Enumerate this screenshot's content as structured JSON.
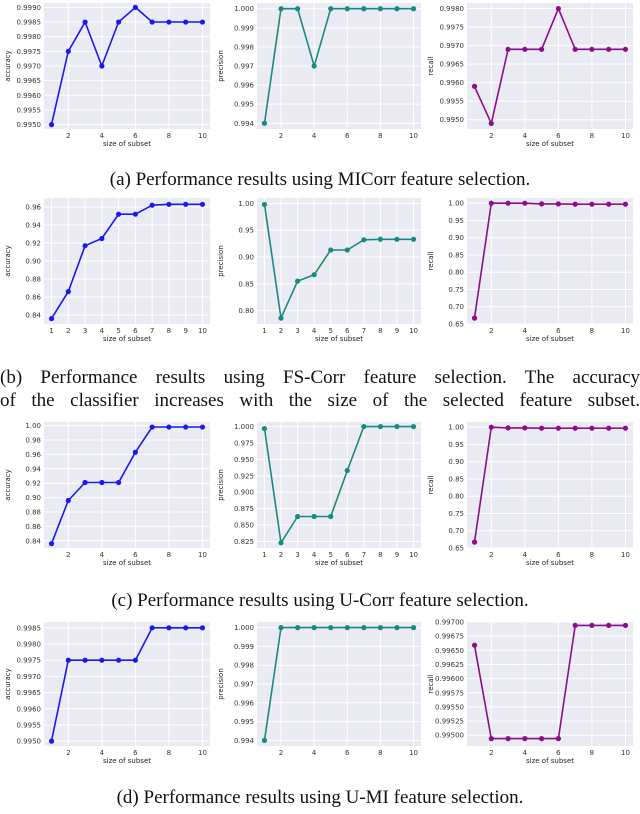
{
  "captions": {
    "a": "(a) Performance results using MICorr feature selection.",
    "b1": "(b) Performance results using FS-Corr feature selection. The accuracy",
    "b2": "of the classifier increases with the size of the selected feature subset.",
    "c": "(c) Performance results using U-Corr feature selection.",
    "d": "(d) Performance results using U-MI feature selection."
  },
  "colors": {
    "accuracy": "#1a1aee",
    "precision": "#1a8a80",
    "recall": "#8a0f8a",
    "plot_bg": "#eaeaf2",
    "grid": "#ffffff"
  },
  "chart_data": [
    {
      "type": "line",
      "group": "a",
      "color_key": "accuracy",
      "x": [
        1,
        2,
        3,
        4,
        5,
        6,
        7,
        8,
        9,
        10
      ],
      "y": [
        0.995,
        0.9975,
        0.9985,
        0.997,
        0.9985,
        0.999,
        0.9985,
        0.9985,
        0.9985,
        0.9985
      ],
      "ylabel": "accuracy",
      "xlabel": "size of subset",
      "ylim": [
        0.99485,
        0.99915
      ],
      "xticks": [
        2,
        4,
        6,
        8,
        10
      ],
      "yticks": [
        0.995,
        0.9955,
        0.996,
        0.9965,
        0.997,
        0.9975,
        0.998,
        0.9985,
        0.999
      ],
      "ytick_labels": [
        "0.9950",
        "0.9955",
        "0.9960",
        "0.9965",
        "0.9970",
        "0.9975",
        "0.9980",
        "0.9985",
        "0.9990"
      ],
      "grid": true
    },
    {
      "type": "line",
      "group": "a",
      "color_key": "precision",
      "x": [
        1,
        2,
        3,
        4,
        5,
        6,
        7,
        8,
        9,
        10
      ],
      "y": [
        0.994,
        1.0,
        1.0,
        0.997,
        1.0,
        1.0,
        1.0,
        1.0,
        1.0,
        1.0
      ],
      "ylabel": "precision",
      "xlabel": "",
      "ylim": [
        0.9937,
        1.0003
      ],
      "xticks": [
        2,
        4,
        6,
        8,
        10
      ],
      "yticks": [
        0.994,
        0.995,
        0.996,
        0.997,
        0.998,
        0.999,
        1.0
      ],
      "ytick_labels": [
        "0.994",
        "0.995",
        "0.996",
        "0.997",
        "0.998",
        "0.999",
        "1.000"
      ],
      "grid": true
    },
    {
      "type": "line",
      "group": "a",
      "color_key": "recall",
      "x": [
        1,
        2,
        3,
        4,
        5,
        6,
        7,
        8,
        9,
        10
      ],
      "y": [
        0.9959,
        0.9949,
        0.9969,
        0.9969,
        0.9969,
        0.998,
        0.9969,
        0.9969,
        0.9969,
        0.9969
      ],
      "ylabel": "recall",
      "xlabel": "size of subset",
      "ylim": [
        0.99475,
        0.99815
      ],
      "xticks": [
        2,
        4,
        6,
        8,
        10
      ],
      "yticks": [
        0.995,
        0.9955,
        0.996,
        0.9965,
        0.997,
        0.9975,
        0.998
      ],
      "ytick_labels": [
        "0.9950",
        "0.9955",
        "0.9960",
        "0.9965",
        "0.9970",
        "0.9975",
        "0.9980"
      ],
      "grid": true
    },
    {
      "type": "line",
      "group": "b",
      "color_key": "accuracy",
      "x": [
        1,
        2,
        3,
        4,
        5,
        6,
        7,
        8,
        9,
        10
      ],
      "y": [
        0.836,
        0.866,
        0.917,
        0.925,
        0.952,
        0.952,
        0.962,
        0.963,
        0.963,
        0.963
      ],
      "ylabel": "accuracy",
      "xlabel": "size of subset",
      "ylim": [
        0.83,
        0.97
      ],
      "xticks": [
        1,
        2,
        3,
        4,
        5,
        6,
        7,
        8,
        9,
        10
      ],
      "yticks": [
        0.84,
        0.86,
        0.88,
        0.9,
        0.92,
        0.94,
        0.96
      ],
      "ytick_labels": [
        "0.84",
        "0.86",
        "0.88",
        "0.90",
        "0.92",
        "0.94",
        "0.96"
      ],
      "grid": true
    },
    {
      "type": "line",
      "group": "b",
      "color_key": "precision",
      "x": [
        1,
        2,
        3,
        4,
        5,
        6,
        7,
        8,
        9,
        10
      ],
      "y": [
        0.998,
        0.786,
        0.855,
        0.867,
        0.913,
        0.913,
        0.932,
        0.933,
        0.933,
        0.933
      ],
      "ylabel": "precision",
      "xlabel": "size of subset",
      "ylim": [
        0.775,
        1.01
      ],
      "xticks": [
        1,
        2,
        3,
        4,
        5,
        6,
        7,
        8,
        9,
        10
      ],
      "yticks": [
        0.8,
        0.85,
        0.9,
        0.95,
        1.0
      ],
      "ytick_labels": [
        "0.80",
        "0.85",
        "0.90",
        "0.95",
        "1.00"
      ],
      "grid": true
    },
    {
      "type": "line",
      "group": "b",
      "color_key": "recall",
      "x": [
        1,
        2,
        3,
        4,
        5,
        6,
        7,
        8,
        9,
        10
      ],
      "y": [
        0.667,
        1.0,
        1.0,
        1.0,
        0.998,
        0.998,
        0.997,
        0.997,
        0.997,
        0.997
      ],
      "ylabel": "recall",
      "xlabel": "size of subset",
      "ylim": [
        0.65,
        1.015
      ],
      "xticks": [
        2,
        4,
        6,
        8,
        10
      ],
      "yticks": [
        0.65,
        0.7,
        0.75,
        0.8,
        0.85,
        0.9,
        0.95,
        1.0
      ],
      "ytick_labels": [
        "0.65",
        "0.70",
        "0.75",
        "0.80",
        "0.85",
        "0.90",
        "0.95",
        "1.00"
      ],
      "grid": true
    },
    {
      "type": "line",
      "group": "c",
      "color_key": "accuracy",
      "x": [
        1,
        2,
        3,
        4,
        5,
        6,
        7,
        8,
        9,
        10
      ],
      "y": [
        0.836,
        0.896,
        0.921,
        0.921,
        0.921,
        0.963,
        0.998,
        0.998,
        0.998,
        0.998
      ],
      "ylabel": "accuracy",
      "xlabel": "size of subset",
      "ylim": [
        0.83,
        1.005
      ],
      "xticks": [
        2,
        4,
        6,
        8,
        10
      ],
      "yticks": [
        0.84,
        0.86,
        0.88,
        0.9,
        0.92,
        0.94,
        0.96,
        0.98,
        1.0
      ],
      "ytick_labels": [
        "0.84",
        "0.86",
        "0.88",
        "0.90",
        "0.92",
        "0.94",
        "0.96",
        "0.98",
        "1.00"
      ],
      "grid": true
    },
    {
      "type": "line",
      "group": "c",
      "color_key": "precision",
      "x": [
        1,
        2,
        3,
        4,
        5,
        6,
        7,
        8,
        9,
        10
      ],
      "y": [
        0.997,
        0.823,
        0.863,
        0.863,
        0.863,
        0.933,
        1.0,
        1.0,
        1.0,
        1.0
      ],
      "ylabel": "precision",
      "xlabel": "size of subset",
      "ylim": [
        0.815,
        1.007
      ],
      "xticks": [
        1,
        2,
        3,
        4,
        5,
        6,
        7,
        8,
        9,
        10
      ],
      "yticks": [
        0.825,
        0.85,
        0.875,
        0.9,
        0.925,
        0.95,
        0.975,
        1.0
      ],
      "ytick_labels": [
        "0.825",
        "0.850",
        "0.875",
        "0.900",
        "0.925",
        "0.950",
        "0.975",
        "1.000"
      ],
      "grid": true
    },
    {
      "type": "line",
      "group": "c",
      "color_key": "recall",
      "x": [
        1,
        2,
        3,
        4,
        5,
        6,
        7,
        8,
        9,
        10
      ],
      "y": [
        0.667,
        1.0,
        0.998,
        0.998,
        0.997,
        0.997,
        0.997,
        0.997,
        0.997,
        0.997
      ],
      "ylabel": "recall",
      "xlabel": "size of subset",
      "ylim": [
        0.65,
        1.015
      ],
      "xticks": [
        2,
        4,
        6,
        8,
        10
      ],
      "yticks": [
        0.65,
        0.7,
        0.75,
        0.8,
        0.85,
        0.9,
        0.95,
        1.0
      ],
      "ytick_labels": [
        "0.65",
        "0.70",
        "0.75",
        "0.80",
        "0.85",
        "0.90",
        "0.95",
        "1.00"
      ],
      "grid": true
    },
    {
      "type": "line",
      "group": "d",
      "color_key": "accuracy",
      "x": [
        1,
        2,
        3,
        4,
        5,
        6,
        7,
        8,
        9,
        10
      ],
      "y": [
        0.995,
        0.9975,
        0.9975,
        0.9975,
        0.9975,
        0.9975,
        0.9985,
        0.9985,
        0.9985,
        0.9985
      ],
      "ylabel": "accuracy",
      "xlabel": "size of subset",
      "ylim": [
        0.99485,
        0.99868
      ],
      "xticks": [
        2,
        4,
        6,
        8,
        10
      ],
      "yticks": [
        0.995,
        0.9955,
        0.996,
        0.9965,
        0.997,
        0.9975,
        0.998,
        0.9985
      ],
      "ytick_labels": [
        "0.9950",
        "0.9955",
        "0.9960",
        "0.9965",
        "0.9970",
        "0.9975",
        "0.9980",
        "0.9985"
      ],
      "grid": true
    },
    {
      "type": "line",
      "group": "d",
      "color_key": "precision",
      "x": [
        1,
        2,
        3,
        4,
        5,
        6,
        7,
        8,
        9,
        10
      ],
      "y": [
        0.994,
        1.0,
        1.0,
        1.0,
        1.0,
        1.0,
        1.0,
        1.0,
        1.0,
        1.0
      ],
      "ylabel": "precision",
      "xlabel": "",
      "ylim": [
        0.9937,
        1.0003
      ],
      "xticks": [
        2,
        4,
        6,
        8,
        10
      ],
      "yticks": [
        0.994,
        0.995,
        0.996,
        0.997,
        0.998,
        0.999,
        1.0
      ],
      "ytick_labels": [
        "0.994",
        "0.995",
        "0.996",
        "0.997",
        "0.998",
        "0.999",
        "1.000"
      ],
      "grid": true
    },
    {
      "type": "line",
      "group": "d",
      "color_key": "recall",
      "x": [
        1,
        2,
        3,
        4,
        5,
        6,
        7,
        8,
        9,
        10
      ],
      "y": [
        0.99659,
        0.99494,
        0.99494,
        0.99494,
        0.99494,
        0.99494,
        0.99694,
        0.99694,
        0.99694,
        0.99694
      ],
      "ylabel": "recall",
      "xlabel": "size of subset",
      "ylim": [
        0.99481,
        0.997
      ],
      "xticks": [
        2,
        4,
        6,
        8,
        10
      ],
      "yticks": [
        0.995,
        0.99525,
        0.9955,
        0.99575,
        0.996,
        0.99625,
        0.9965,
        0.99675,
        0.997
      ],
      "ytick_labels": [
        "0.99500",
        "0.99525",
        "0.99550",
        "0.99575",
        "0.99600",
        "0.99625",
        "0.99650",
        "0.99675",
        "0.99700"
      ],
      "grid": true
    }
  ]
}
